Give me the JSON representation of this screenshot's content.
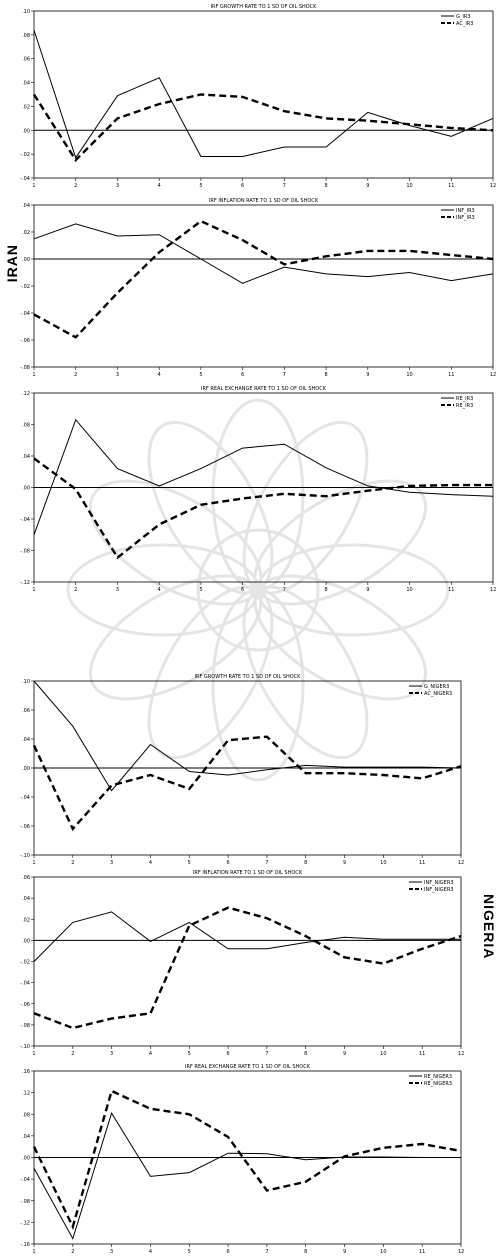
{
  "country_labels": {
    "iran": "IRAN",
    "nigeria": "NIGERIA"
  },
  "chart_data": [
    {
      "type": "line",
      "title": "IRF GROWTH RATE TO 1 SD OF OIL SHOCK",
      "x": [
        1,
        2,
        3,
        4,
        5,
        6,
        7,
        8,
        9,
        10,
        11,
        12
      ],
      "x_tick_labels": [
        "1",
        "2",
        "3",
        "4",
        "5",
        "6",
        "7",
        "8",
        "9",
        "10",
        "11",
        "12"
      ],
      "ylim": [
        -0.04,
        0.1
      ],
      "y_tick_labels": [
        ".10",
        ".08",
        ".06",
        ".04",
        ".02",
        ".00",
        "-.02",
        "-.04"
      ],
      "series": [
        {
          "name": "G_IR3",
          "style": "solid",
          "values": [
            0.084,
            -0.023,
            0.029,
            0.044,
            -0.022,
            -0.022,
            -0.014,
            -0.014,
            0.015,
            0.004,
            -0.005,
            0.01
          ]
        },
        {
          "name": "AC_IR3",
          "style": "dashed",
          "values": [
            0.03,
            -0.025,
            0.01,
            0.022,
            0.03,
            0.028,
            0.016,
            0.01,
            0.008,
            0.005,
            0.002,
            0.0
          ]
        }
      ],
      "legend_position": "top-right",
      "zero_line": true
    },
    {
      "type": "line",
      "title": "IRF INFLATION RATE TO 1 SD OF OIL SHOCK",
      "x": [
        1,
        2,
        3,
        4,
        5,
        6,
        7,
        8,
        9,
        10,
        11,
        12
      ],
      "x_tick_labels": [
        "1",
        "2",
        "3",
        "4",
        "5",
        "6",
        "7",
        "8",
        "9",
        "10",
        "11",
        "12"
      ],
      "ylim": [
        -0.08,
        0.04
      ],
      "y_tick_labels": [
        ".04",
        ".02",
        ".00",
        "-.02",
        "-.04",
        "-.06",
        "-.08"
      ],
      "series": [
        {
          "name": "INF_IR3",
          "style": "solid",
          "values": [
            0.015,
            0.026,
            0.017,
            0.018,
            0.0,
            -0.018,
            -0.006,
            -0.011,
            -0.013,
            -0.01,
            -0.016,
            -0.011
          ]
        },
        {
          "name": "INF_IR3",
          "style": "dashed",
          "values": [
            -0.041,
            -0.058,
            -0.025,
            0.005,
            0.028,
            0.014,
            -0.004,
            0.002,
            0.006,
            0.006,
            0.003,
            0.0
          ]
        }
      ],
      "legend_position": "top-right",
      "zero_line": true
    },
    {
      "type": "line",
      "title": "IRF REAL EXCHANGE RATE TO 1 SD OF OIL SHOCK",
      "x": [
        1,
        2,
        3,
        4,
        5,
        6,
        7,
        8,
        9,
        10,
        11,
        12
      ],
      "x_tick_labels": [
        "1",
        "2",
        "3",
        "4",
        "5",
        "6",
        "7",
        "8",
        "9",
        "10",
        "11",
        "12"
      ],
      "ylim": [
        -0.12,
        0.12
      ],
      "y_tick_labels": [
        ".12",
        ".08",
        ".04",
        ".00",
        "-.04",
        "-.08",
        "-.12"
      ],
      "series": [
        {
          "name": "RE_IR3",
          "style": "solid",
          "values": [
            -0.06,
            0.086,
            0.024,
            0.002,
            0.024,
            0.05,
            0.055,
            0.025,
            0.002,
            -0.006,
            -0.009,
            -0.011
          ]
        },
        {
          "name": "RE_IR3",
          "style": "dashed",
          "values": [
            0.037,
            -0.002,
            -0.089,
            -0.047,
            -0.022,
            -0.014,
            -0.008,
            -0.011,
            -0.004,
            0.002,
            0.003,
            0.003
          ]
        }
      ],
      "legend_position": "top-right",
      "zero_line": true
    },
    {
      "type": "line",
      "title": "IRF GROWTH RATE TO 1 SD OF OIL SHOCK",
      "x": [
        1,
        2,
        3,
        4,
        5,
        6,
        7,
        8,
        9,
        10,
        11,
        12
      ],
      "x_tick_labels": [
        "1",
        "2",
        "3",
        "4",
        "5",
        "6",
        "7",
        "8",
        "9",
        "10",
        "11",
        "12"
      ],
      "ylim": [
        -0.1,
        0.1
      ],
      "y_tick_labels": [
        ".10",
        ".06",
        ".04",
        ".00",
        "-.04",
        "-.06",
        "-.10"
      ],
      "series": [
        {
          "name": "G_NIGER3",
          "style": "solid",
          "values": [
            0.1,
            0.048,
            -0.026,
            0.027,
            -0.004,
            -0.008,
            -0.002,
            0.003,
            0.001,
            0.001,
            0.001,
            0.0
          ]
        },
        {
          "name": "AC_NIGER3",
          "style": "dashed",
          "values": [
            0.026,
            -0.07,
            -0.02,
            -0.008,
            -0.024,
            0.032,
            0.036,
            -0.006,
            -0.006,
            -0.008,
            -0.012,
            0.002
          ]
        }
      ],
      "legend_position": "top-right",
      "zero_line": true
    },
    {
      "type": "line",
      "title": "IRF INFLATION RATE TO 1 SD OF OIL SHOCK",
      "x": [
        1,
        2,
        3,
        4,
        5,
        6,
        7,
        8,
        9,
        10,
        11,
        12
      ],
      "x_tick_labels": [
        "1",
        "2",
        "3",
        "4",
        "5",
        "6",
        "7",
        "8",
        "9",
        "10",
        "11",
        "12"
      ],
      "ylim": [
        -0.1,
        0.06
      ],
      "y_tick_labels": [
        ".06",
        ".04",
        ".02",
        ".00",
        "-.02",
        "-.04",
        "-.06",
        "-.08",
        "-.10"
      ],
      "series": [
        {
          "name": "INF_NIGER3",
          "style": "solid",
          "values": [
            -0.02,
            0.017,
            0.027,
            -0.001,
            0.017,
            -0.008,
            -0.008,
            -0.002,
            0.003,
            0.001,
            0.001,
            0.001
          ]
        },
        {
          "name": "INF_NIGER3",
          "style": "dashed",
          "values": [
            -0.069,
            -0.083,
            -0.074,
            -0.069,
            0.014,
            0.031,
            0.021,
            0.004,
            -0.016,
            -0.022,
            -0.008,
            0.004
          ]
        }
      ],
      "legend_position": "top-right",
      "zero_line": true
    },
    {
      "type": "line",
      "title": "IRF REAL EXCHANGE RATE TO 1 SD OF OIL SHOCK",
      "x": [
        1,
        2,
        3,
        4,
        5,
        6,
        7,
        8,
        9,
        10,
        11,
        12
      ],
      "x_tick_labels": [
        "1",
        "2",
        "3",
        "4",
        "5",
        "6",
        "7",
        "8",
        "9",
        "10",
        "11",
        "12"
      ],
      "ylim": [
        -0.16,
        0.16
      ],
      "y_tick_labels": [
        ".16",
        ".12",
        ".08",
        ".04",
        ".00",
        "-.04",
        "-.08",
        "-.12",
        "-.16"
      ],
      "series": [
        {
          "name": "RE_NIGER3",
          "style": "solid",
          "values": [
            -0.02,
            -0.15,
            0.082,
            -0.035,
            -0.028,
            0.008,
            0.007,
            -0.004,
            0.001,
            0.001,
            0.0,
            0.0
          ]
        },
        {
          "name": "RE_NIGER3",
          "style": "dashed",
          "values": [
            0.02,
            -0.128,
            0.123,
            0.09,
            0.08,
            0.038,
            -0.061,
            -0.045,
            0.002,
            0.018,
            0.025,
            0.012
          ]
        }
      ],
      "legend_position": "top-right",
      "zero_line": true
    }
  ]
}
